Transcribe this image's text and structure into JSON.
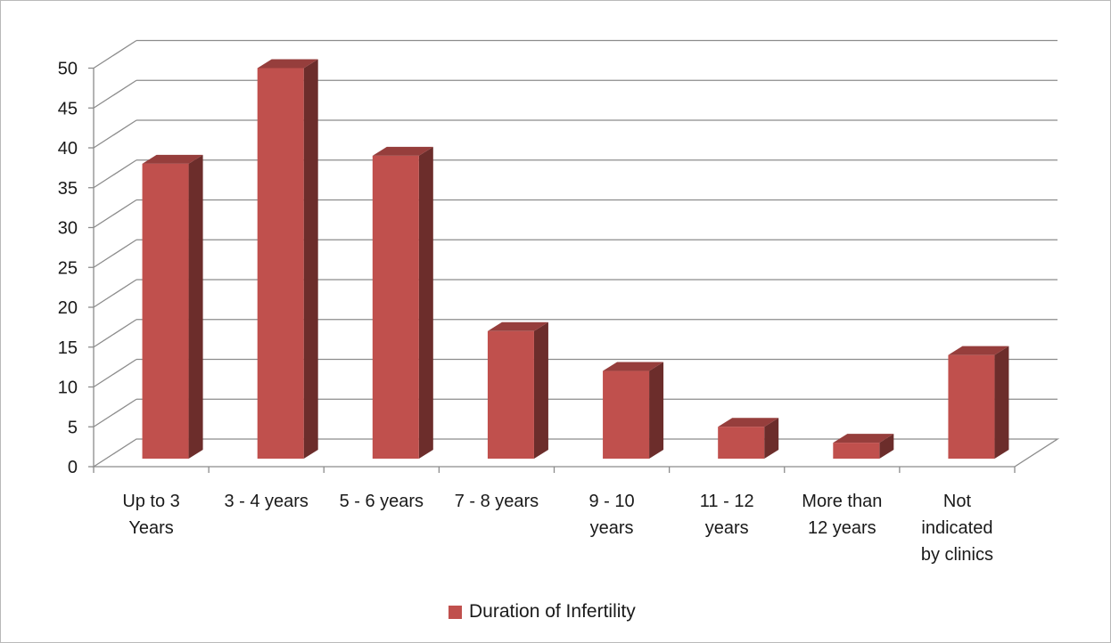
{
  "chart_data": {
    "type": "bar",
    "style": "3d-column",
    "categories": [
      [
        "Up to 3",
        "Years"
      ],
      [
        "3 - 4 years"
      ],
      [
        "5 - 6 years"
      ],
      [
        "7 - 8 years"
      ],
      [
        "9 - 10",
        "years"
      ],
      [
        "11 - 12",
        "years"
      ],
      [
        "More than",
        "12 years"
      ],
      [
        "Not",
        "indicated",
        "by clinics"
      ]
    ],
    "series": [
      {
        "name": "Duration of Infertility",
        "values": [
          37,
          49,
          38,
          16,
          11,
          4,
          2,
          13
        ],
        "color": "#c0504d"
      }
    ],
    "y_ticks": [
      "0",
      "5",
      "10",
      "15",
      "20",
      "25",
      "30",
      "35",
      "40",
      "45",
      "50"
    ],
    "ylim": [
      0,
      50
    ],
    "grid": true,
    "legend": "bottom",
    "title": "",
    "xlabel": "",
    "ylabel": ""
  }
}
